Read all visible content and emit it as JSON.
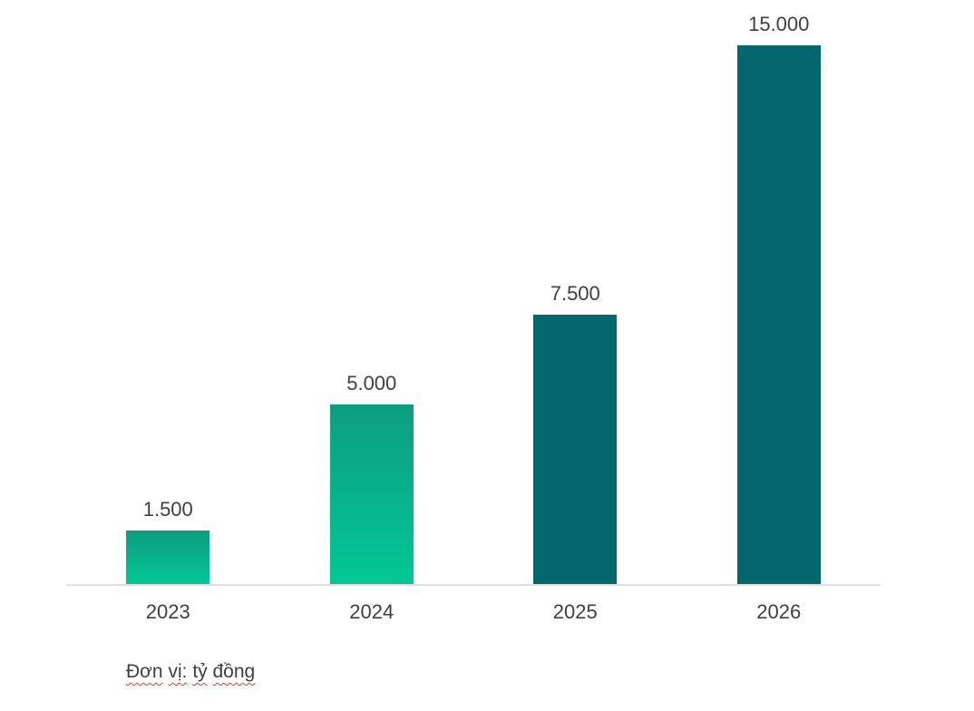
{
  "chart_data": {
    "type": "bar",
    "title": "",
    "xlabel": "",
    "ylabel": "",
    "categories": [
      "2023",
      "2024",
      "2025",
      "2026"
    ],
    "values": [
      1500,
      5000,
      7500,
      15000
    ],
    "value_labels": [
      "1.500",
      "5.000",
      "7.500",
      "15.000"
    ],
    "ylim": [
      0,
      15000
    ],
    "grid": false,
    "legend_position": "none",
    "axis_line_color": "#e0e0e0",
    "label_color": "#3f3f3f",
    "bar_styles": [
      {
        "fill": "gradient",
        "from": "#0d9d7f",
        "to": "#02c795"
      },
      {
        "fill": "gradient",
        "from": "#0d9d7f",
        "to": "#02c795"
      },
      {
        "fill": "solid",
        "color": "#04676d"
      },
      {
        "fill": "solid",
        "color": "#04676d"
      }
    ]
  },
  "caption": {
    "text": "Đơn vị: tỷ đồng",
    "words": [
      "Đơn",
      "vị:",
      "tỷ",
      "đồng"
    ],
    "underline_color": "#e23b2e"
  }
}
